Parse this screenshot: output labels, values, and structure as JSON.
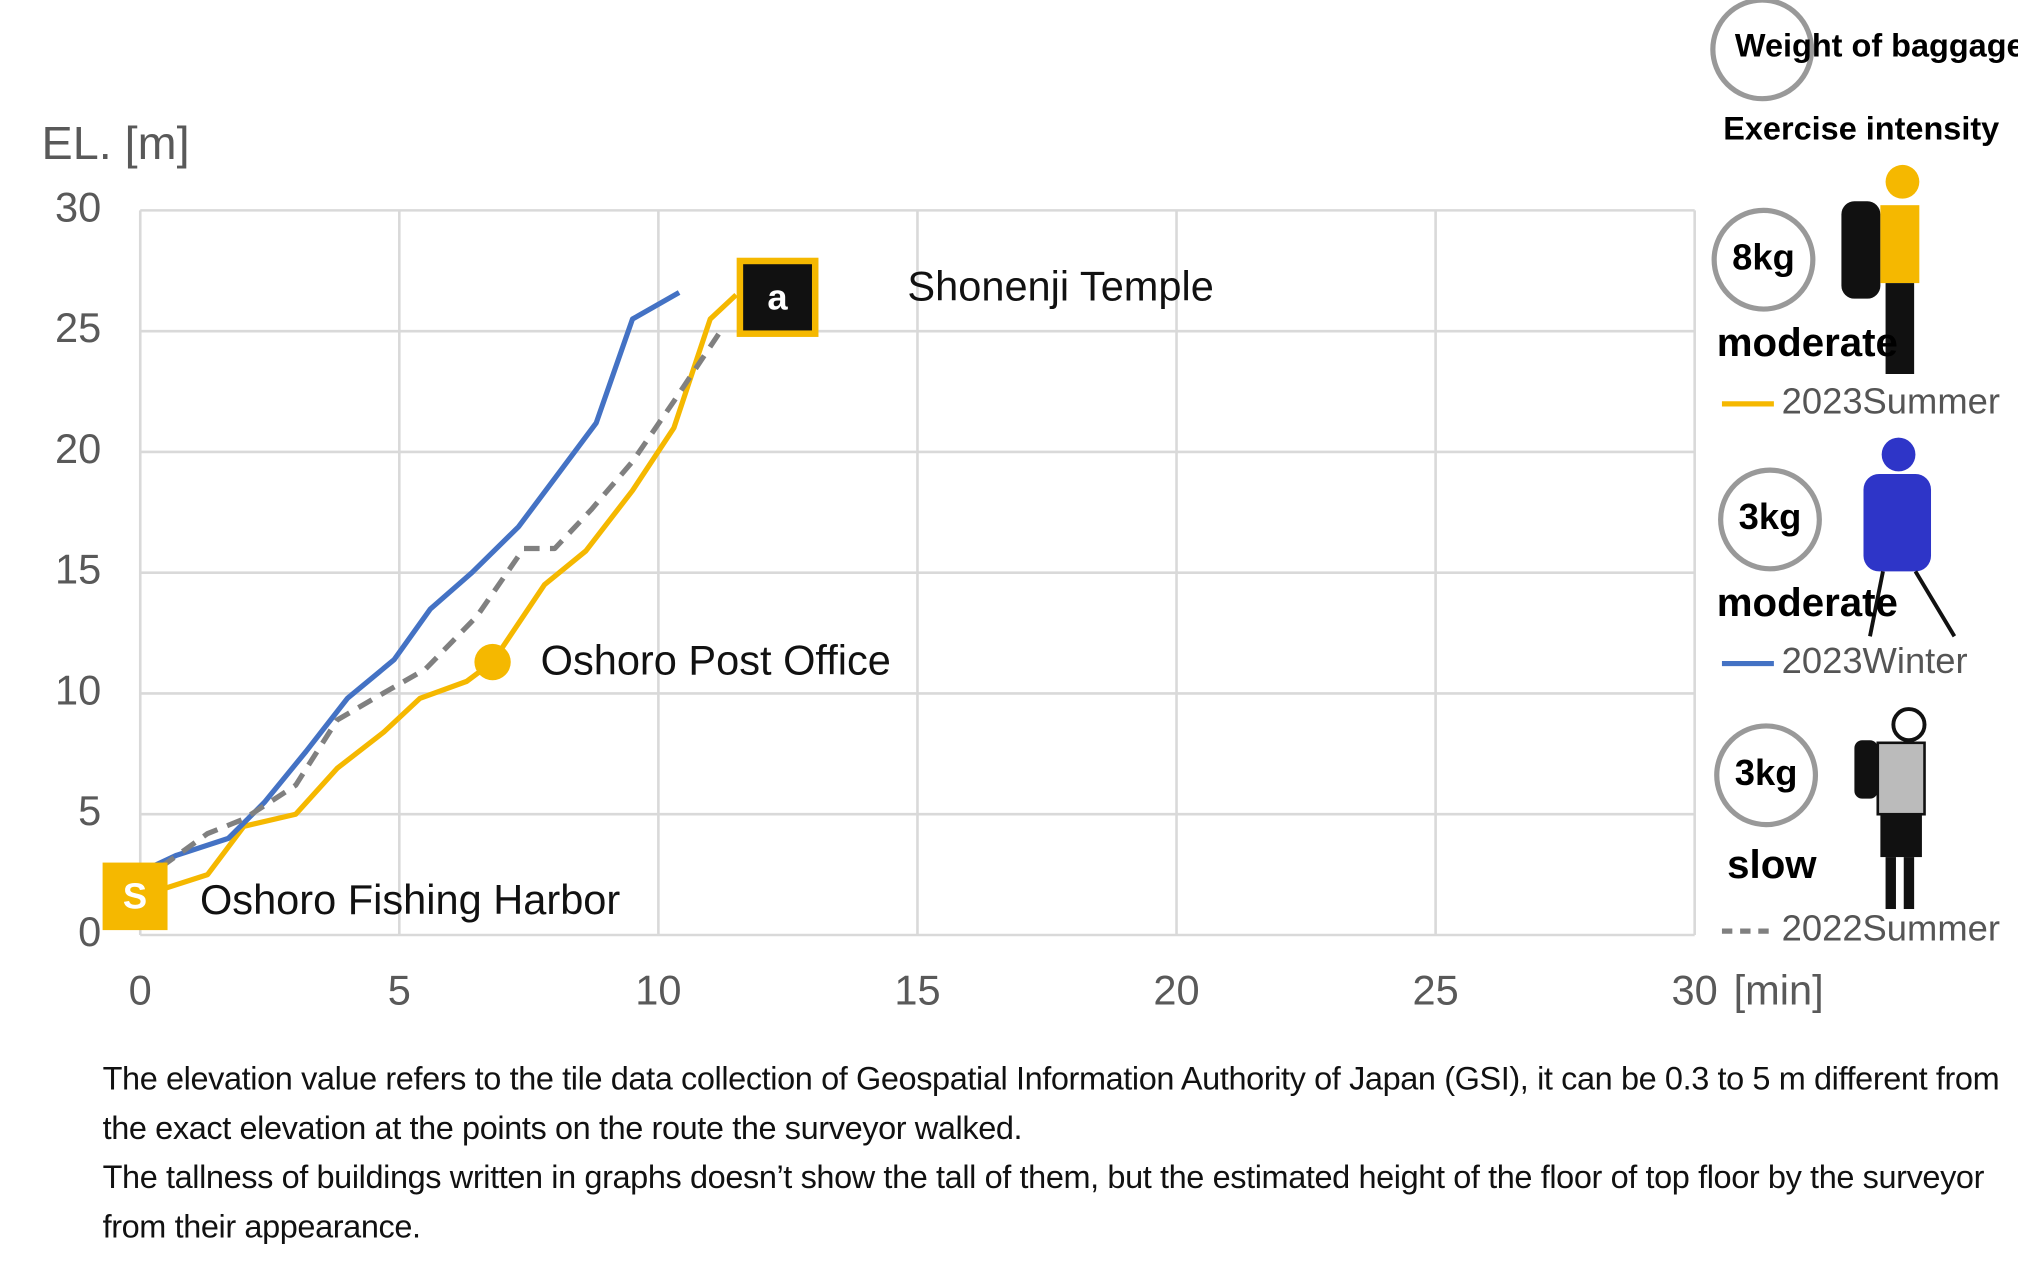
{
  "chart_data": {
    "type": "line",
    "y_label": "EL. [m]",
    "x_label": "[min]",
    "xlim": [
      0,
      30
    ],
    "xticks": [
      0,
      5,
      10,
      15,
      20,
      25,
      30
    ],
    "ylim": [
      0,
      30
    ],
    "yticks": [
      0,
      5,
      10,
      15,
      20,
      25,
      30
    ],
    "grid": true,
    "legend_header": {
      "weight": "Weight of baggage",
      "intensity": "Exercise intensity"
    },
    "series": [
      {
        "name": "2023Summer",
        "color": "#f5b800",
        "dashed": false,
        "weight": "8kg",
        "intensity": "moderate",
        "x": [
          0,
          1.3,
          2,
          3,
          3.8,
          4.7,
          5.4,
          6.3,
          6.8,
          7.8,
          8.6,
          9.5,
          10.3,
          11,
          11.5
        ],
        "values": [
          1.6,
          2.5,
          4.5,
          5,
          6.9,
          8.4,
          9.8,
          10.5,
          11.3,
          14.5,
          15.9,
          18.4,
          21,
          25.5,
          26.5
        ]
      },
      {
        "name": "2023Winter",
        "color": "#4472c4",
        "dashed": false,
        "weight": "3kg",
        "intensity": "moderate",
        "x": [
          0,
          0.7,
          1.7,
          2.4,
          3.2,
          4,
          4.9,
          5.6,
          6.4,
          7.3,
          8,
          8.8,
          9.5,
          10.4
        ],
        "values": [
          2.6,
          3.3,
          4,
          5.5,
          7.6,
          9.8,
          11.4,
          13.5,
          15,
          16.9,
          18.9,
          21.2,
          25.5,
          26.6
        ]
      },
      {
        "name": "2022Summer",
        "color": "#808080",
        "dashed": true,
        "weight": "3kg",
        "intensity": "slow",
        "x": [
          0,
          1.3,
          2,
          3,
          3.8,
          4.6,
          5.5,
          6.5,
          7.4,
          8,
          8.7,
          9.5,
          10.3,
          11.2
        ],
        "values": [
          2.2,
          4.2,
          4.8,
          6.2,
          8.9,
          9.9,
          11,
          13.2,
          16,
          16,
          17.6,
          19.6,
          22.1,
          25
        ]
      }
    ],
    "annotations": [
      {
        "label": "a",
        "text": "Shonenji Temple",
        "x": 12.3,
        "y": 26.4
      },
      {
        "text": "Oshoro Post Office",
        "x": 6.8,
        "y": 11.3
      },
      {
        "label": "S",
        "text": "Oshoro Fishing Harbor",
        "x": -0.1,
        "y": 1.6
      }
    ],
    "notes": [
      "The elevation value refers to the tile data collection of Geospatial Information Authority of Japan (GSI), it can be 0.3 to 5 m different from the exact elevation at the points on the route the surveyor walked.",
      "The tallness of buildings written in graphs doesn’t show the tall of them, but the estimated height of the floor of top floor by the surveyor from their appearance."
    ]
  }
}
